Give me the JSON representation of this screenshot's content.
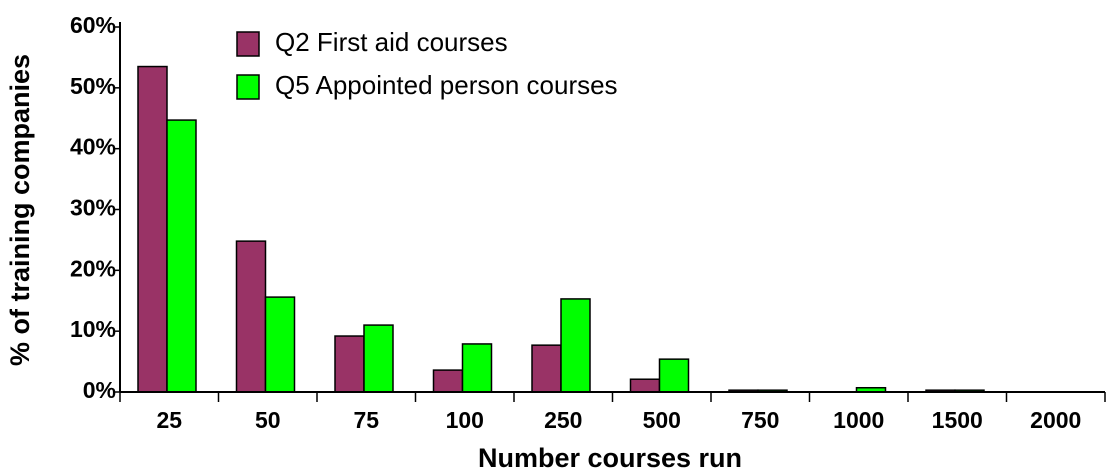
{
  "chart_data": {
    "type": "bar",
    "y_label": "% of training companies",
    "x_label": "Number courses run",
    "categories": [
      "25",
      "50",
      "75",
      "100",
      "250",
      "500",
      "750",
      "1000",
      "1500",
      "2000"
    ],
    "series": [
      {
        "name": "Q2 First aid courses",
        "color": "#993366",
        "values": [
          53.5,
          24.8,
          9.2,
          3.6,
          7.7,
          2.1,
          0.3,
          0,
          0.3,
          0
        ]
      },
      {
        "name": "Q5 Appointed person courses",
        "color": "#00ff00",
        "values": [
          44.7,
          15.6,
          11.0,
          7.9,
          15.3,
          5.4,
          0.3,
          0.7,
          0.3,
          0
        ]
      }
    ],
    "ylim": [
      0,
      60
    ],
    "yticks": [
      {
        "value": 0,
        "label": "0%"
      },
      {
        "value": 10,
        "label": "10%"
      },
      {
        "value": 20,
        "label": "20%"
      },
      {
        "value": 30,
        "label": "30%"
      },
      {
        "value": 40,
        "label": "40%"
      },
      {
        "value": 50,
        "label": "50%"
      },
      {
        "value": 60,
        "label": "60%"
      }
    ],
    "grid": false,
    "legend": "top-left"
  }
}
